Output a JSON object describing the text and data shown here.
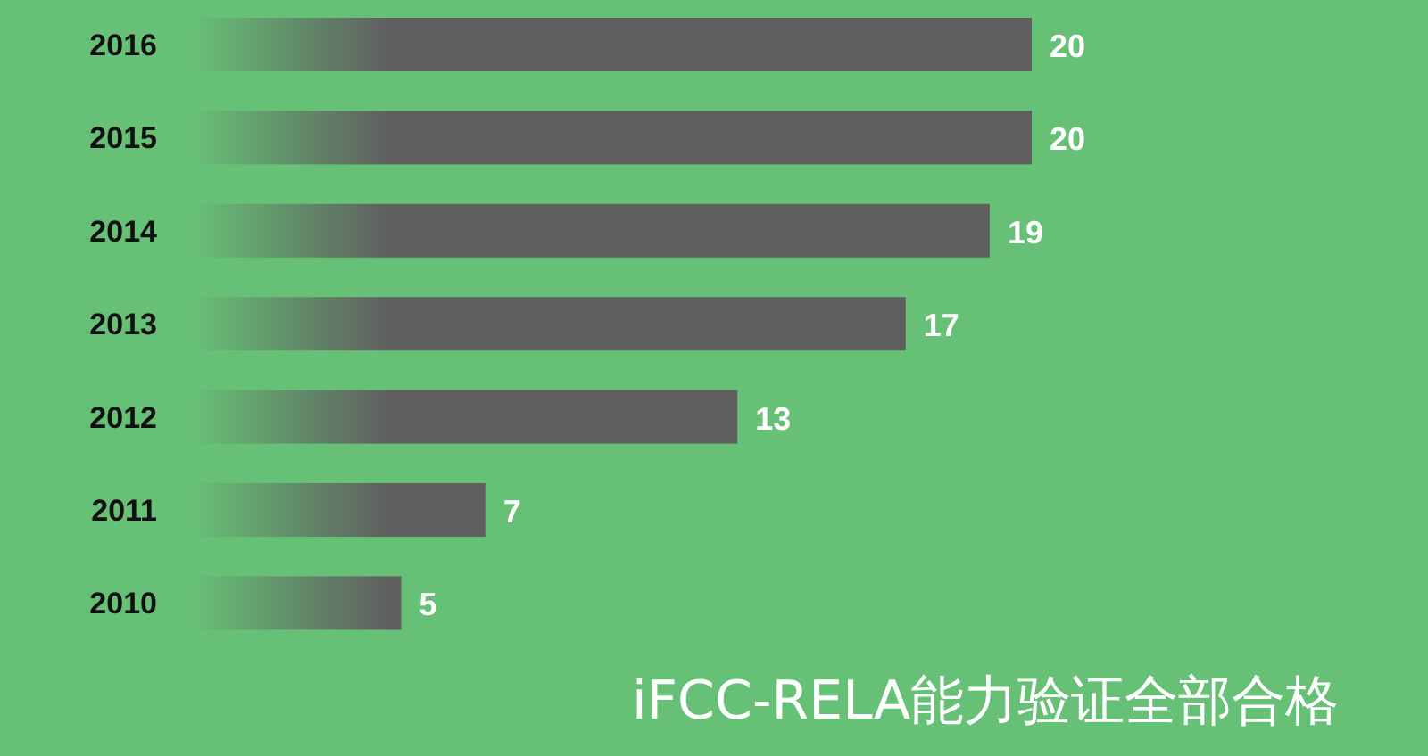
{
  "chart_data": {
    "type": "bar",
    "orientation": "horizontal",
    "title": "iFCC-RELA能力验证全部合格",
    "categories": [
      "2016",
      "2015",
      "2014",
      "2013",
      "2012",
      "2011",
      "2010"
    ],
    "values": [
      20,
      20,
      19,
      17,
      13,
      7,
      5
    ],
    "color": "#5f5f5f",
    "data_labels": true
  }
}
